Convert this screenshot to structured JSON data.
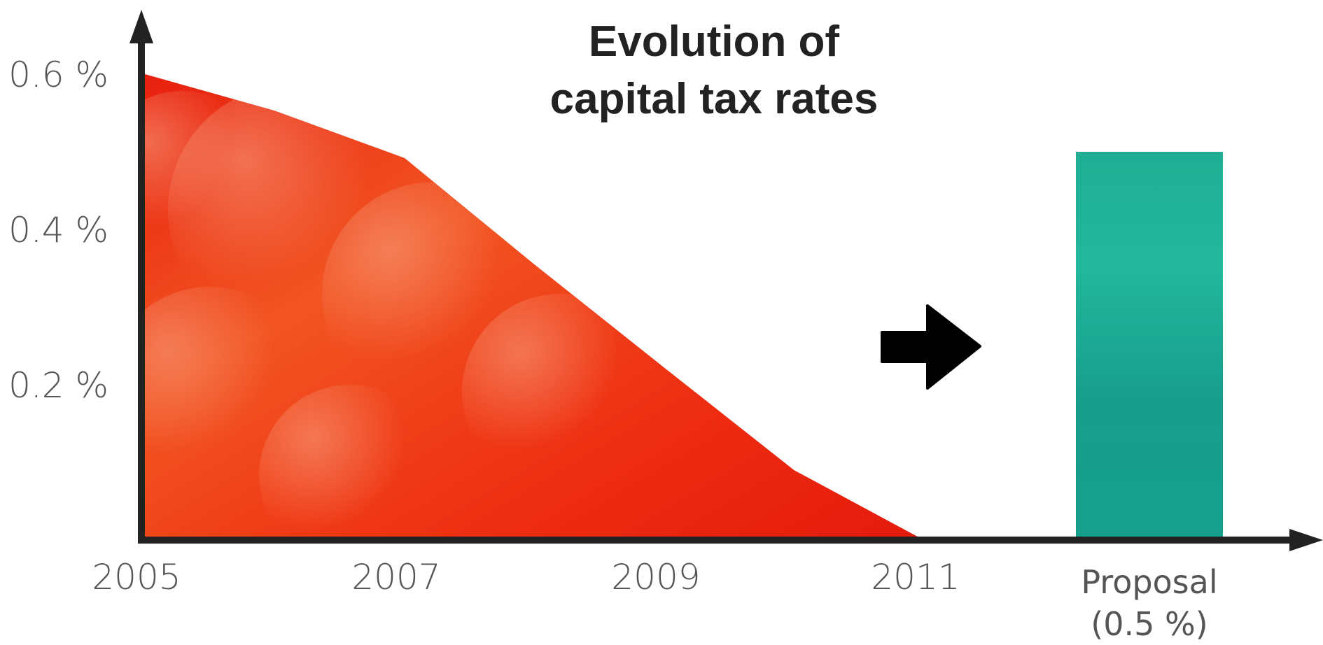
{
  "chart_data": {
    "type": "area",
    "title": [
      "Evolution of",
      "capital tax rates"
    ],
    "x_years": [
      2005,
      2006,
      2007,
      2008,
      2009,
      2010,
      2011
    ],
    "values": [
      0.6,
      0.553,
      0.492,
      0.355,
      0.222,
      0.09,
      0.0
    ],
    "x_tick_labels": [
      "2005",
      "2007",
      "2009",
      "2011"
    ],
    "x_tick_years": [
      2005,
      2007,
      2009,
      2011
    ],
    "y_ticks": [
      0.2,
      0.4,
      0.6
    ],
    "y_tick_labels": [
      "0.2 %",
      "0.4 %",
      "0.6 %"
    ],
    "ylim": [
      0,
      0.65
    ],
    "proposal": {
      "label_line1": "Proposal",
      "label_line2": "(0.5 %)",
      "value": 0.5
    },
    "colors": {
      "area": "#ee2a12",
      "area_highlight": "#f56a2a",
      "proposal_bar": "#18a48e",
      "proposal_bar_light": "#27c9a7",
      "axis": "#222222",
      "arrow": "#000000"
    },
    "grid": false
  }
}
